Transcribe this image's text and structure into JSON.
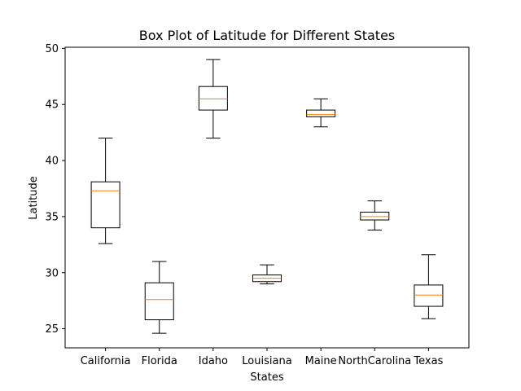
{
  "chart_data": {
    "type": "box",
    "title": "Box Plot of Latitude for Different States",
    "xlabel": "States",
    "ylabel": "Latitude",
    "ylim": [
      23.3,
      50.1
    ],
    "yticks": [
      25,
      30,
      35,
      40,
      45,
      50
    ],
    "categories": [
      "California",
      "Florida",
      "Idaho",
      "Louisiana",
      "Maine",
      "NorthCarolina",
      "Texas"
    ],
    "boxes": [
      {
        "category": "California",
        "whisker_low": 32.6,
        "q1": 34.0,
        "median": 37.3,
        "q3": 38.1,
        "whisker_high": 42.0
      },
      {
        "category": "Florida",
        "whisker_low": 24.6,
        "q1": 25.8,
        "median": 27.6,
        "q3": 29.1,
        "whisker_high": 31.0
      },
      {
        "category": "Idaho",
        "whisker_low": 42.0,
        "q1": 44.5,
        "median": 45.5,
        "q3": 46.6,
        "whisker_high": 49.0
      },
      {
        "category": "Louisiana",
        "whisker_low": 29.0,
        "q1": 29.2,
        "median": 29.5,
        "q3": 29.8,
        "whisker_high": 30.7
      },
      {
        "category": "Maine",
        "whisker_low": 43.0,
        "q1": 43.9,
        "median": 44.1,
        "q3": 44.5,
        "whisker_high": 45.5
      },
      {
        "category": "NorthCarolina",
        "whisker_low": 33.8,
        "q1": 34.7,
        "median": 35.0,
        "q3": 35.4,
        "whisker_high": 36.4
      },
      {
        "category": "Texas",
        "whisker_low": 25.9,
        "q1": 27.0,
        "median": 28.0,
        "q3": 28.9,
        "whisker_high": 31.6
      }
    ],
    "colors": {
      "box": "#000000",
      "median": "#ff7f0e",
      "frame": "#000000"
    },
    "grid": false
  }
}
